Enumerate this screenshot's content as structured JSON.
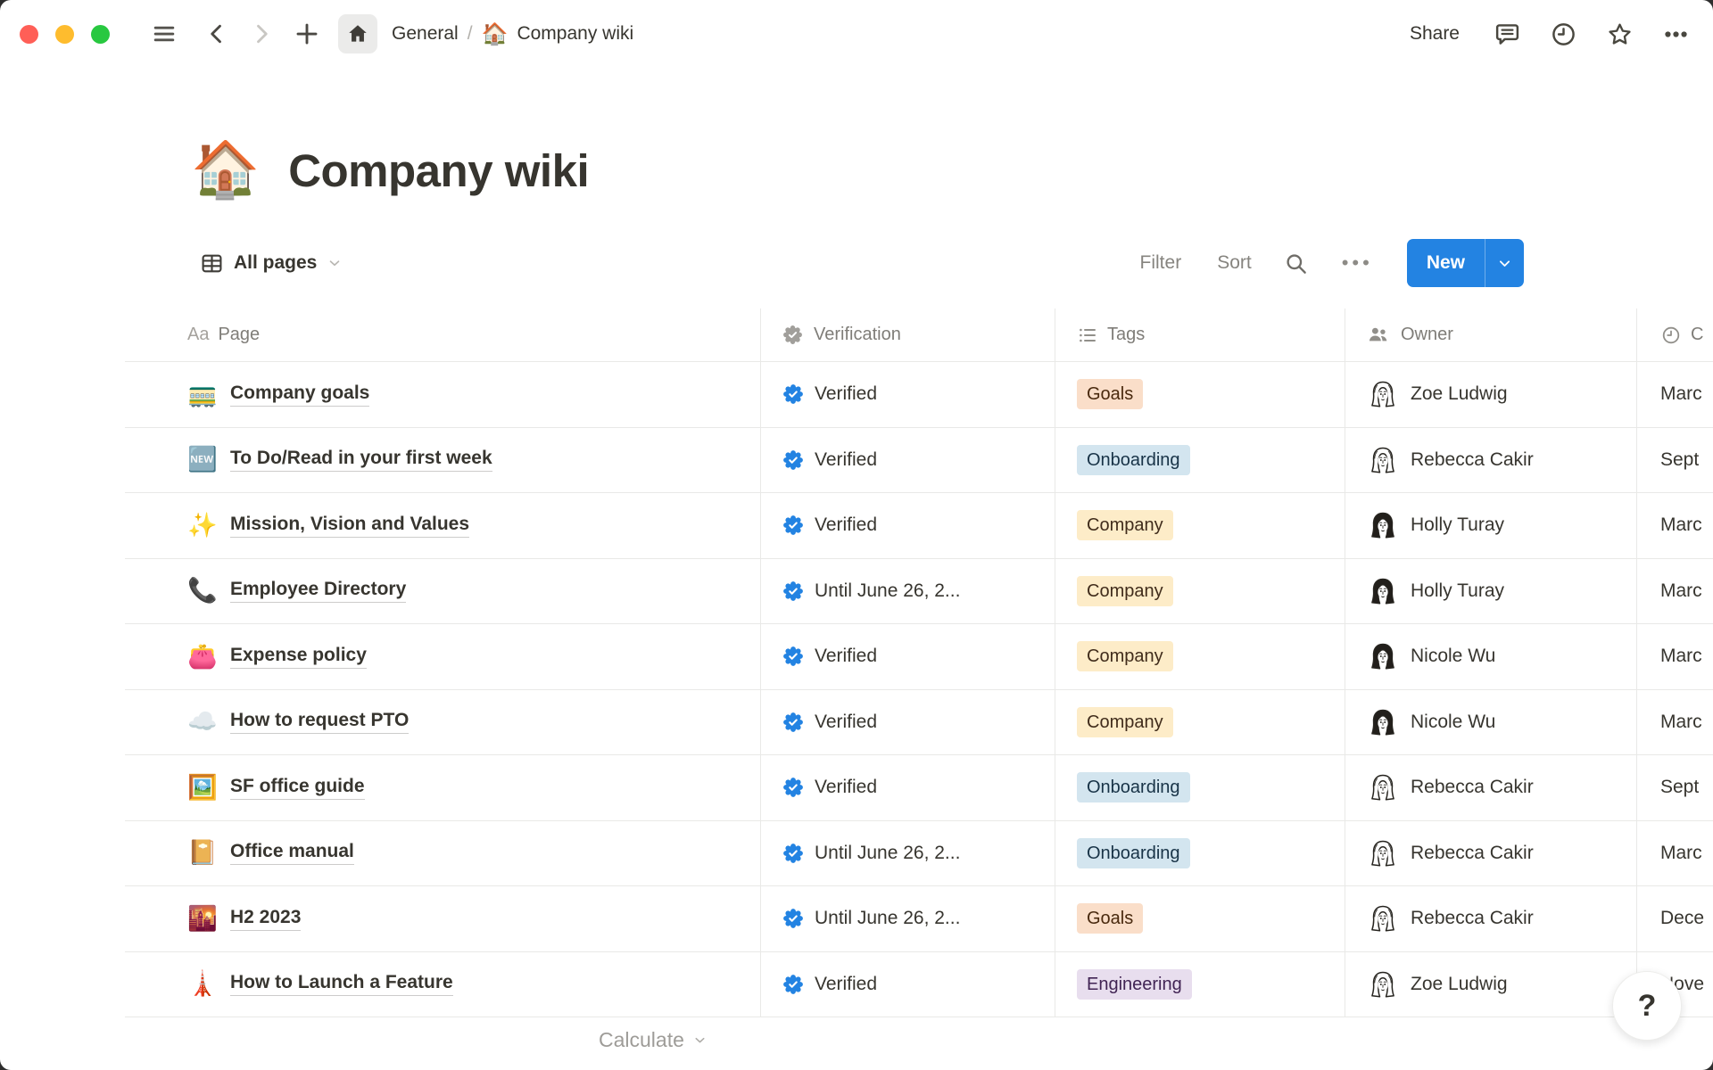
{
  "topbar": {
    "breadcrumb": {
      "root": "General",
      "separator": "/",
      "page_emoji": "🏠",
      "page_label": "Company wiki"
    },
    "share_label": "Share"
  },
  "page": {
    "emoji": "🏠",
    "title": "Company wiki"
  },
  "toolbar": {
    "view_label": "All pages",
    "filter_label": "Filter",
    "sort_label": "Sort",
    "more_label": "•••",
    "new_label": "New"
  },
  "table": {
    "aa_glyph": "Aa",
    "columns": [
      {
        "label": "Page"
      },
      {
        "label": "Verification"
      },
      {
        "label": "Tags"
      },
      {
        "label": "Owner"
      },
      {
        "label": "C"
      }
    ],
    "rows": [
      {
        "emoji": "🚃",
        "title": "Company goals",
        "verification": "Verified",
        "tag": "Goals",
        "tag_color": "orange",
        "owner": "Zoe Ludwig",
        "avatar_variant": "light",
        "date": "Marc"
      },
      {
        "emoji": "🆕",
        "title": "To Do/Read in your first week",
        "verification": "Verified",
        "tag": "Onboarding",
        "tag_color": "blue",
        "owner": "Rebecca Cakir",
        "avatar_variant": "light",
        "date": "Sept"
      },
      {
        "emoji": "✨",
        "title": "Mission, Vision and Values",
        "verification": "Verified",
        "tag": "Company",
        "tag_color": "yellow",
        "owner": "Holly Turay",
        "avatar_variant": "dark",
        "date": "Marc"
      },
      {
        "emoji": "📞",
        "title": "Employee Directory",
        "verification": "Until June 26, 2...",
        "tag": "Company",
        "tag_color": "yellow",
        "owner": "Holly Turay",
        "avatar_variant": "dark",
        "date": "Marc"
      },
      {
        "emoji": "👛",
        "title": "Expense policy",
        "verification": "Verified",
        "tag": "Company",
        "tag_color": "yellow",
        "owner": "Nicole Wu",
        "avatar_variant": "dark",
        "date": "Marc"
      },
      {
        "emoji": "☁️",
        "title": "How to request PTO",
        "verification": "Verified",
        "tag": "Company",
        "tag_color": "yellow",
        "owner": "Nicole Wu",
        "avatar_variant": "dark",
        "date": "Marc"
      },
      {
        "emoji": "🖼️",
        "title": "SF office guide",
        "verification": "Verified",
        "tag": "Onboarding",
        "tag_color": "blue",
        "owner": "Rebecca Cakir",
        "avatar_variant": "light",
        "date": "Sept"
      },
      {
        "emoji": "📔",
        "title": "Office manual",
        "verification": "Until June 26, 2...",
        "tag": "Onboarding",
        "tag_color": "blue",
        "owner": "Rebecca Cakir",
        "avatar_variant": "light",
        "date": "Marc"
      },
      {
        "emoji": "🌇",
        "title": "H2 2023",
        "verification": "Until June 26, 2...",
        "tag": "Goals",
        "tag_color": "orange",
        "owner": "Rebecca Cakir",
        "avatar_variant": "light",
        "date": "Dece"
      },
      {
        "emoji": "🗼",
        "title": "How to Launch a Feature",
        "verification": "Verified",
        "tag": "Engineering",
        "tag_color": "purple",
        "owner": "Zoe Ludwig",
        "avatar_variant": "light",
        "date": "Nove"
      }
    ]
  },
  "tag_colors": {
    "orange": {
      "bg": "#fadec9",
      "text": "#49290e"
    },
    "blue": {
      "bg": "#d3e5ef",
      "text": "#183347"
    },
    "yellow": {
      "bg": "#fdecc8",
      "text": "#402c1b"
    },
    "purple": {
      "bg": "#e8deee",
      "text": "#412454"
    }
  },
  "colors": {
    "accent_blue": "#2383e2",
    "badge_blue": "#2383e2",
    "traffic": [
      "#ff5f57",
      "#febc2e",
      "#28c840"
    ]
  },
  "footer": {
    "calculate_label": "Calculate"
  },
  "help": {
    "label": "?"
  }
}
